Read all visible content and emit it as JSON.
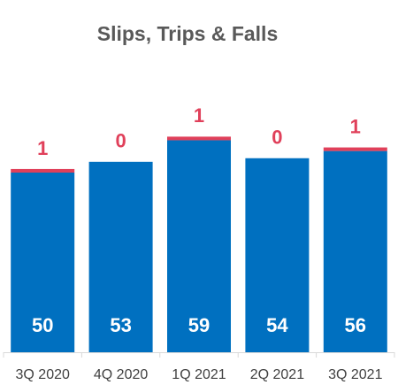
{
  "chart_data": {
    "type": "stacked_bar",
    "title": "Slips, Trips & Falls",
    "categories": [
      "3Q 2020",
      "4Q 2020",
      "1Q 2021",
      "2Q 2021",
      "3Q 2021"
    ],
    "series": [
      {
        "color": "#0070c0",
        "values": [
          50,
          53,
          59,
          54,
          56
        ]
      },
      {
        "color": "#e0405a",
        "values": [
          1,
          0,
          1,
          0,
          1
        ]
      }
    ]
  }
}
